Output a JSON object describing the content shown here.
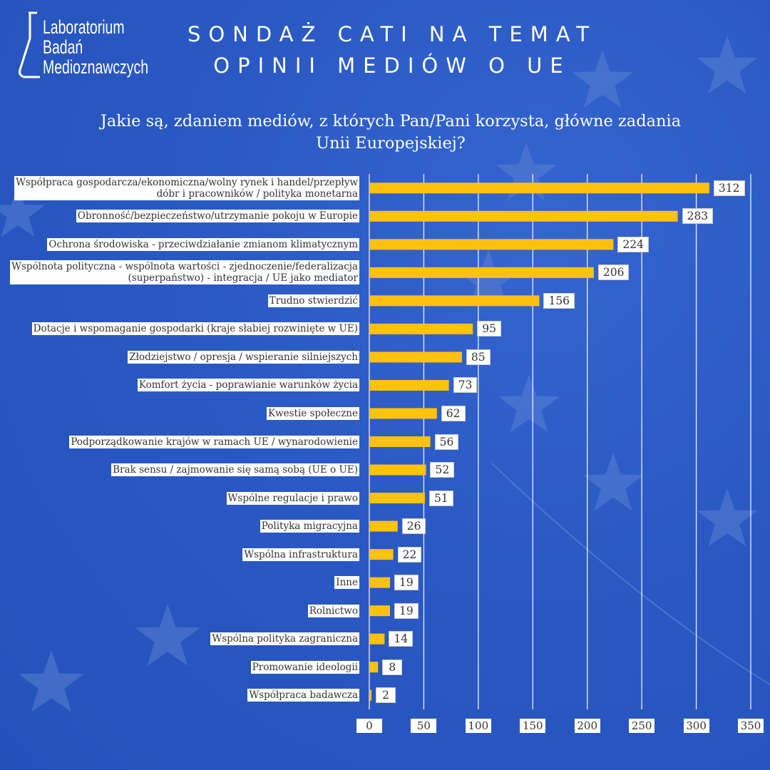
{
  "header": {
    "logo_lines": [
      "Laboratorium",
      "Badań",
      "Medioznawczych"
    ],
    "title_line1": "SONDAŻ CATI NA TEMAT",
    "title_line2": "OPINII MEDIÓW O UE"
  },
  "question": {
    "line1": "Jakie są, zdaniem mediów, z których Pan/Pani korzysta, główne zadania",
    "line2": "Unii Europejskiej?"
  },
  "colors": {
    "background": "#2a59c4",
    "bar": "#ffc20e",
    "grid": "#ffffff",
    "star": "#5a7fd0"
  },
  "chart_data": {
    "type": "bar",
    "orientation": "horizontal",
    "title": "Jakie są, zdaniem mediów, z których Pan/Pani korzysta, główne zadania Unii Europejskiej?",
    "xlabel": "",
    "ylabel": "",
    "xlim": [
      0,
      350
    ],
    "xticks": [
      0,
      50,
      100,
      150,
      200,
      250,
      300,
      350
    ],
    "grid": true,
    "categories": [
      "Współpraca gospodarcza/ekonomiczna/wolny rynek i handel/przepływ\ndóbr i pracowników / polityka monetarna",
      "Obronność/bezpieczeństwo/utrzymanie pokoju w Europie",
      "Ochrona środowiska - przeciwdziałanie zmianom klimatycznym",
      "Wspólnota polityczna - wspólnota wartości - zjednoczenie/federalizacja\n(superpaństwo) - integracja / UE jako mediator",
      "Trudno stwierdzić",
      "Dotacje i wspomaganie gospodarki (kraje słabiej rozwinięte w UE)",
      "Złodziejstwo / opresja / wspieranie silniejszych",
      "Komfort życia - poprawianie warunków życia",
      "Kwestie społeczne",
      "Podporządkowanie krajów w ramach UE / wynarodowienie",
      "Brak sensu / zajmowanie się samą sobą (UE o UE)",
      "Wspólne regulacje i prawo",
      "Polityka migracyjna",
      "Wspólna infrastruktura",
      "Inne",
      "Rolnictwo",
      "Wspólna polityka zagraniczna",
      "Promowanie ideologii",
      "Współpraca badawcza"
    ],
    "values": [
      312,
      283,
      224,
      206,
      156,
      95,
      85,
      73,
      62,
      56,
      52,
      51,
      26,
      22,
      19,
      19,
      14,
      8,
      2
    ]
  }
}
